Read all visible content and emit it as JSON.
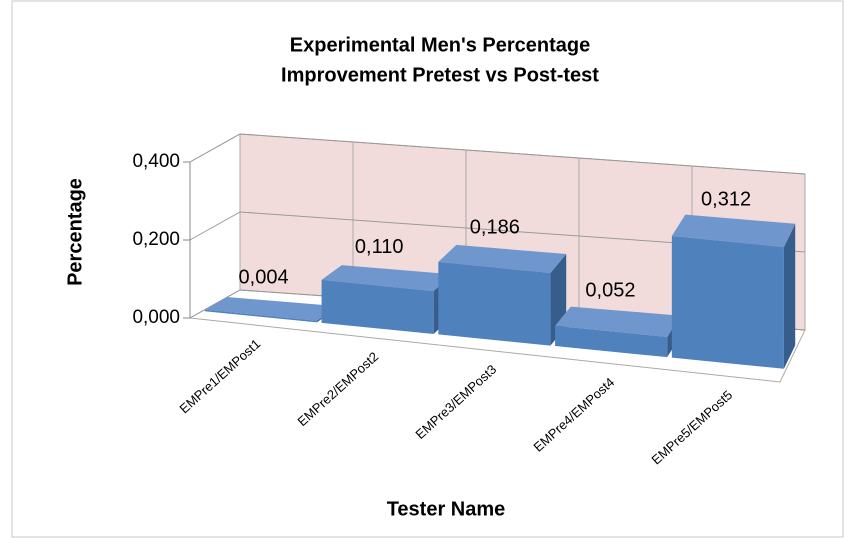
{
  "chart_data": {
    "type": "bar3d",
    "title": [
      "Experimental Men's Percentage",
      "Improvement Pretest vs Post-test"
    ],
    "x_label": "Tester Name",
    "y_label": "Percentage",
    "categories": [
      "EMPre1/EMPost1",
      "EMPre2/EMPost2",
      "EMPre3/EMPost3",
      "EMPre4/EMPost4",
      "EMPre5/EMPost5"
    ],
    "values": [
      0.004,
      0.11,
      0.186,
      0.052,
      0.312
    ],
    "value_labels": [
      "0,004",
      "0,110",
      "0,186",
      "0,052",
      "0,312"
    ],
    "color": "#4f81bd",
    "ylim": [
      0,
      0.4
    ],
    "yticks": [
      {
        "value": 0,
        "label": "0,000"
      },
      {
        "value": 0.2,
        "label": "0,200"
      },
      {
        "value": 0.4,
        "label": "0,400"
      }
    ],
    "grid": true
  }
}
